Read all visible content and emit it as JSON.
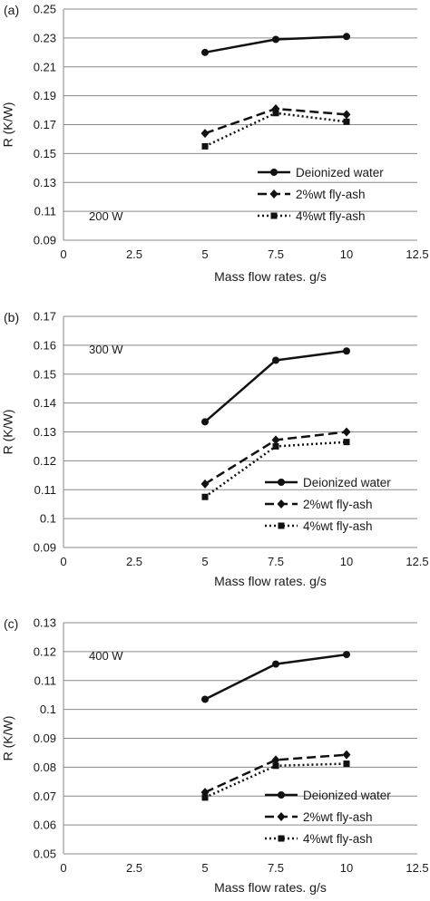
{
  "chart_data": [
    {
      "type": "line",
      "panel_label": "(a)",
      "annotation": "200 W",
      "xlabel": "Mass flow rates. g/s",
      "ylabel": "R (K/W)",
      "xlim": [
        0,
        12.5
      ],
      "ylim": [
        0.09,
        0.25
      ],
      "xticks": [
        0,
        2.5,
        5,
        7.5,
        10,
        12.5
      ],
      "xtick_labels": [
        "0",
        "2.5",
        "5",
        "7.5",
        "10",
        "12.5"
      ],
      "yticks": [
        0.09,
        0.11,
        0.13,
        0.15,
        0.17,
        0.19,
        0.21,
        0.23,
        0.25
      ],
      "ytick_labels": [
        "0.09",
        "0.11",
        "0.13",
        "0.15",
        "0.17",
        "0.19",
        "0.21",
        "0.23",
        "0.25"
      ],
      "grid": "horizontal",
      "legend_position": "bottom-right",
      "x": [
        5,
        7.5,
        10
      ],
      "series": [
        {
          "name": "Deionized water",
          "values": [
            0.22,
            0.229,
            0.231
          ],
          "line": "solid",
          "marker": "circle"
        },
        {
          "name": "2%wt fly-ash",
          "values": [
            0.164,
            0.181,
            0.177
          ],
          "line": "dashed",
          "marker": "diamond"
        },
        {
          "name": "4%wt fly-ash",
          "values": [
            0.155,
            0.178,
            0.172
          ],
          "line": "dotted",
          "marker": "square"
        }
      ]
    },
    {
      "type": "line",
      "panel_label": "(b)",
      "annotation": "300 W",
      "xlabel": "Mass flow rates. g/s",
      "ylabel": "R (K/W)",
      "xlim": [
        0,
        12.5
      ],
      "ylim": [
        0.09,
        0.17
      ],
      "xticks": [
        0,
        2.5,
        5,
        7.5,
        10,
        12.5
      ],
      "xtick_labels": [
        "0",
        "2.5",
        "5",
        "7.5",
        "10",
        "12.5"
      ],
      "yticks": [
        0.09,
        0.1,
        0.11,
        0.12,
        0.13,
        0.14,
        0.15,
        0.16,
        0.17
      ],
      "ytick_labels": [
        "0.09",
        "0.1",
        "0.11",
        "0.12",
        "0.13",
        "0.14",
        "0.15",
        "0.16",
        "0.17"
      ],
      "grid": "horizontal",
      "legend_position": "bottom-right",
      "x": [
        5,
        7.5,
        10
      ],
      "series": [
        {
          "name": "Deionized water",
          "values": [
            0.1335,
            0.1548,
            0.158
          ],
          "line": "solid",
          "marker": "circle"
        },
        {
          "name": "2%wt fly-ash",
          "values": [
            0.112,
            0.1272,
            0.13
          ],
          "line": "dashed",
          "marker": "diamond"
        },
        {
          "name": "4%wt fly-ash",
          "values": [
            0.1075,
            0.125,
            0.1265
          ],
          "line": "dotted",
          "marker": "square"
        }
      ]
    },
    {
      "type": "line",
      "panel_label": "(c)",
      "annotation": "400 W",
      "xlabel": "Mass flow rates. g/s",
      "ylabel": "R (K/W)",
      "xlim": [
        0,
        12.5
      ],
      "ylim": [
        0.05,
        0.13
      ],
      "xticks": [
        0,
        2.5,
        5,
        7.5,
        10,
        12.5
      ],
      "xtick_labels": [
        "0",
        "2.5",
        "5",
        "7.5",
        "10",
        "12.5"
      ],
      "yticks": [
        0.05,
        0.06,
        0.07,
        0.08,
        0.09,
        0.1,
        0.11,
        0.12,
        0.13
      ],
      "ytick_labels": [
        "0.05",
        "0.06",
        "0.07",
        "0.08",
        "0.09",
        "0.1",
        "0.11",
        "0.12",
        "0.13"
      ],
      "grid": "horizontal",
      "legend_position": "bottom-right",
      "x": [
        5,
        7.5,
        10
      ],
      "series": [
        {
          "name": "Deionized water",
          "values": [
            0.1035,
            0.1157,
            0.119
          ],
          "line": "solid",
          "marker": "circle"
        },
        {
          "name": "2%wt fly-ash",
          "values": [
            0.0713,
            0.0825,
            0.0843
          ],
          "line": "dashed",
          "marker": "diamond"
        },
        {
          "name": "4%wt fly-ash",
          "values": [
            0.0695,
            0.0805,
            0.0812
          ],
          "line": "dotted",
          "marker": "square"
        }
      ]
    }
  ]
}
